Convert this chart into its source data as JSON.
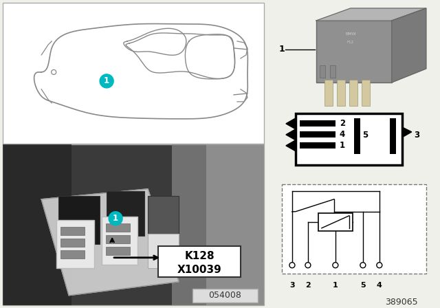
{
  "bg_color": "#f0f0eb",
  "part_number_top": "054008",
  "part_number_bottom": "389065",
  "k_label": "K128",
  "x_label": "X10039",
  "teal_color": "#00b8c0",
  "car_line_color": "#888888",
  "photo_bg": "#3a3a3a",
  "relay_gray": "#8a8a8a",
  "relay_light": "#b0b0b0",
  "pin_cream": "#d4c8a0"
}
